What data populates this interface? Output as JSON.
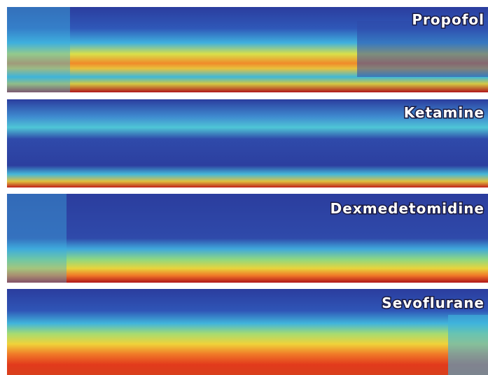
{
  "panels": [
    {
      "label": "Propofol"
    },
    {
      "label": "Ketamine"
    },
    {
      "label": "Dexmedetomidine"
    },
    {
      "label": "Sevoflurane"
    }
  ]
}
